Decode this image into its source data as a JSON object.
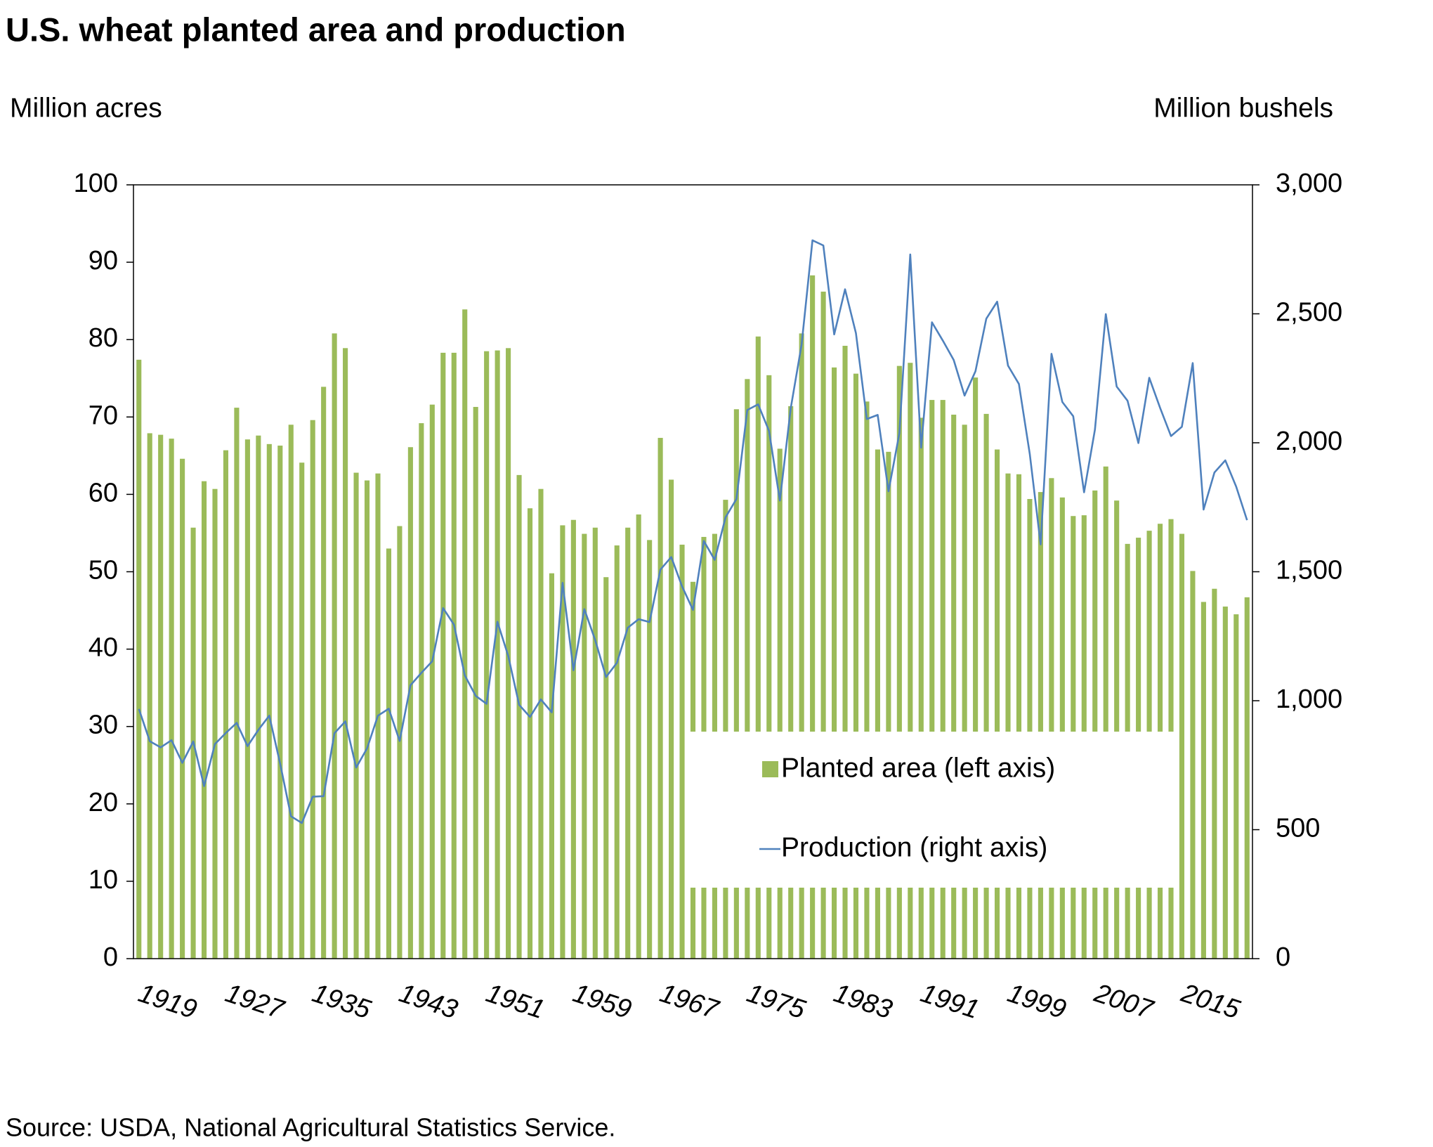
{
  "chart_data": {
    "type": "combo",
    "title": "U.S. wheat planted area and production",
    "y_label": "Million acres",
    "y2_label": "Million bushels",
    "source": "Source: USDA, National Agricultural Statistics Service.",
    "categories": [
      "1919",
      null,
      null,
      null,
      null,
      null,
      null,
      null,
      "1927",
      null,
      null,
      null,
      null,
      null,
      null,
      null,
      "1935",
      null,
      null,
      null,
      null,
      null,
      null,
      null,
      "1943",
      null,
      null,
      null,
      null,
      null,
      null,
      null,
      "1951",
      null,
      null,
      null,
      null,
      null,
      null,
      null,
      "1959",
      null,
      null,
      null,
      null,
      null,
      null,
      null,
      "1967",
      null,
      null,
      null,
      null,
      null,
      null,
      null,
      "1975",
      null,
      null,
      null,
      null,
      null,
      null,
      null,
      "1983",
      null,
      null,
      null,
      null,
      null,
      null,
      null,
      "1991",
      null,
      null,
      null,
      null,
      null,
      null,
      null,
      "1999",
      null,
      null,
      null,
      null,
      null,
      null,
      null,
      "2007",
      null,
      null,
      null,
      null,
      null,
      null,
      null,
      "2015",
      null,
      null,
      null,
      null,
      null,
      null
    ],
    "series": [
      {
        "name": "Planted area (left axis)",
        "type": "bar",
        "axis": "y",
        "color": "#9bbb59",
        "values": [
          77.4,
          67.9,
          67.7,
          67.2,
          64.6,
          55.7,
          61.7,
          60.7,
          65.7,
          71.2,
          67.1,
          67.6,
          66.5,
          66.3,
          69.0,
          64.1,
          69.6,
          73.9,
          80.8,
          78.9,
          62.8,
          61.8,
          62.7,
          53.0,
          55.9,
          66.1,
          69.2,
          71.6,
          78.3,
          78.3,
          83.9,
          71.3,
          78.5,
          78.6,
          78.9,
          62.5,
          58.2,
          60.7,
          49.8,
          56.0,
          56.7,
          54.9,
          55.7,
          49.3,
          53.4,
          55.7,
          57.4,
          54.1,
          67.3,
          61.9,
          53.5,
          48.7,
          54.5,
          54.9,
          59.3,
          71.0,
          74.9,
          80.4,
          75.4,
          65.9,
          71.4,
          80.8,
          88.3,
          86.2,
          76.4,
          79.2,
          75.6,
          72.0,
          65.8,
          65.5,
          76.6,
          77.0,
          69.9,
          72.2,
          72.2,
          70.3,
          69.0,
          75.1,
          70.4,
          65.8,
          62.7,
          62.6,
          59.4,
          60.3,
          62.1,
          59.6,
          57.2,
          57.3,
          60.5,
          63.6,
          59.2,
          53.6,
          54.4,
          55.3,
          56.2,
          56.8,
          54.9,
          50.1,
          46.1,
          47.8,
          45.5,
          44.5,
          46.7
        ]
      },
      {
        "name": "Production (right axis)",
        "type": "line",
        "axis": "y2",
        "color": "#4f81bd",
        "values": [
          968,
          843,
          819,
          847,
          759,
          842,
          669,
          832,
          875,
          914,
          824,
          887,
          942,
          756,
          552,
          526,
          628,
          630,
          874,
          920,
          741,
          815,
          942,
          969,
          844,
          1060,
          1108,
          1153,
          1359,
          1295,
          1098,
          1019,
          988,
          1306,
          1173,
          984,
          937,
          1005,
          955,
          1457,
          1118,
          1355,
          1235,
          1092,
          1147,
          1283,
          1316,
          1305,
          1508,
          1557,
          1443,
          1352,
          1619,
          1546,
          1711,
          1782,
          2127,
          2149,
          2046,
          1776,
          2134,
          2381,
          2785,
          2765,
          2420,
          2595,
          2425,
          2092,
          2108,
          1812,
          2037,
          2730,
          1981,
          2467,
          2396,
          2321,
          2183,
          2277,
          2481,
          2547,
          2299,
          2228,
          1957,
          1606,
          2345,
          2158,
          2103,
          1808,
          2051,
          2499,
          2218,
          2163,
          1999,
          2252,
          2135,
          2026,
          2062,
          2309,
          1741,
          1885,
          1932,
          1830,
          1700
        ]
      }
    ],
    "ylim": [
      0,
      100
    ],
    "yticks": [
      0,
      10,
      20,
      30,
      40,
      50,
      60,
      70,
      80,
      90,
      100
    ],
    "y2lim": [
      0,
      3000
    ],
    "y2ticks": [
      0,
      500,
      {
        "value": 1000,
        "label": "1,000"
      },
      {
        "value": 1500,
        "label": "1,500"
      },
      {
        "value": 2000,
        "label": "2,000"
      },
      {
        "value": 2500,
        "label": "2,500"
      },
      {
        "value": 3000,
        "label": "3,000"
      }
    ],
    "grid": false
  }
}
